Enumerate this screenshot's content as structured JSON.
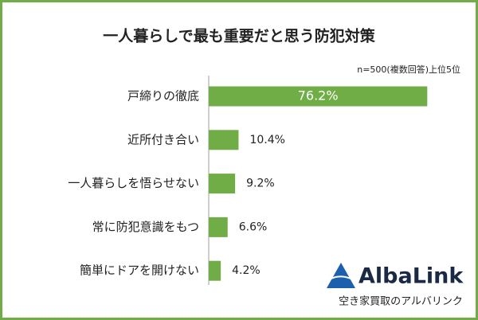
{
  "chart_data": {
    "type": "bar",
    "title": "一人暮らしで最も重要だと思う防犯対策",
    "subtitle": "n=500(複数回答)上位5位",
    "categories": [
      "戸締りの徹底",
      "近所付き合い",
      "一人暮らしを悟らせない",
      "常に防犯意識をもつ",
      "簡単にドアを開けない"
    ],
    "values": [
      76.2,
      10.4,
      9.2,
      6.6,
      4.2
    ],
    "value_labels": [
      "76.2%",
      "10.4%",
      "9.2%",
      "6.6%",
      "4.2%"
    ],
    "color": "#70ad47"
  },
  "brand": {
    "name": "AlbaLink",
    "tagline": "空き家買取のアルバリンク"
  }
}
